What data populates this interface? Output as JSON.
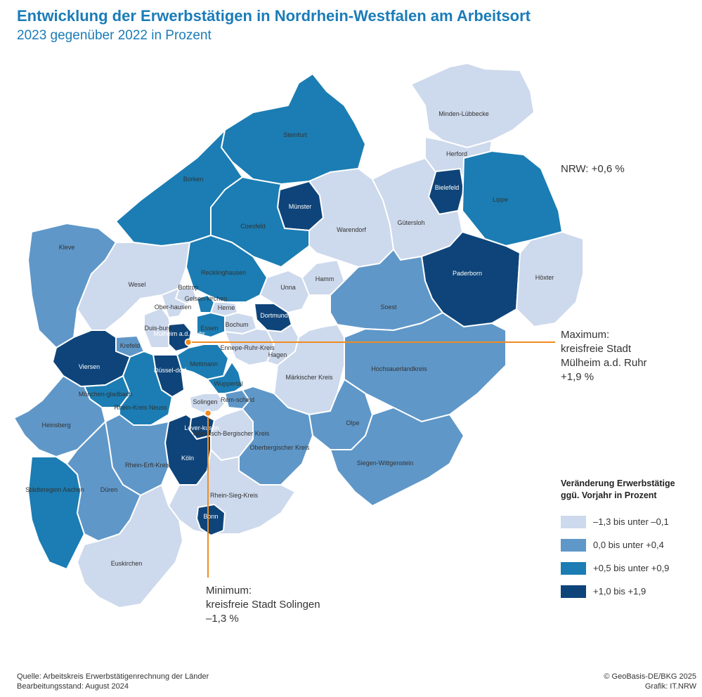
{
  "title": "Entwicklung der Erwerbstätigen in Nordrhein-Westfalen am Arbeitsort",
  "subtitle": "2023 gegenüber 2022 in Prozent",
  "nrw_total": "NRW: +0,6 %",
  "maximum": {
    "line1": "Maximum:",
    "line2": "kreisfreie Stadt",
    "line3": "Mülheim a.d. Ruhr",
    "line4": "+1,9 %"
  },
  "minimum": {
    "line1": "Minimum:",
    "line2": "kreisfreie Stadt Solingen",
    "line3": "–1,3 %"
  },
  "legend": {
    "title_line1": "Veränderung Erwerbstätige",
    "title_line2": "ggü. Vorjahr in Prozent",
    "classes": [
      {
        "label": "–1,3 bis unter –0,1",
        "color": "#cdd9ec"
      },
      {
        "label": "0,0 bis unter +0,4",
        "color": "#5f97c8"
      },
      {
        "label": "+0,5 bis unter +0,9",
        "color": "#1b7db3"
      },
      {
        "label": "+1,0 bis +1,9",
        "color": "#0e4479"
      }
    ]
  },
  "callout_color": "#f08c21",
  "regions": [
    {
      "name": "Minden-Lübbecke",
      "class": 0
    },
    {
      "name": "Herford",
      "class": 0
    },
    {
      "name": "Bielefeld",
      "class": 3
    },
    {
      "name": "Lippe",
      "class": 2
    },
    {
      "name": "Steinfurt",
      "class": 2
    },
    {
      "name": "Borken",
      "class": 2
    },
    {
      "name": "Münster",
      "class": 3
    },
    {
      "name": "Coesfeld",
      "class": 2
    },
    {
      "name": "Warendorf",
      "class": 0
    },
    {
      "name": "Gütersloh",
      "class": 0
    },
    {
      "name": "Paderborn",
      "class": 3
    },
    {
      "name": "Höxter",
      "class": 0
    },
    {
      "name": "Kleve",
      "class": 1
    },
    {
      "name": "Wesel",
      "class": 0
    },
    {
      "name": "Recklinghausen",
      "class": 2
    },
    {
      "name": "Bottrop",
      "class": 0
    },
    {
      "name": "Gelsen-kirchen",
      "class": 2
    },
    {
      "name": "Ober-hausen",
      "class": 0
    },
    {
      "name": "Herne",
      "class": 0
    },
    {
      "name": "Unna",
      "class": 0
    },
    {
      "name": "Hamm",
      "class": 0
    },
    {
      "name": "Soest",
      "class": 1
    },
    {
      "name": "Dortmund",
      "class": 3
    },
    {
      "name": "Bochum",
      "class": 0
    },
    {
      "name": "Essen",
      "class": 2
    },
    {
      "name": "Duis-burg",
      "class": 0
    },
    {
      "name": "Mülheim a.d. Ruhr",
      "class": 3
    },
    {
      "name": "Krefeld",
      "class": 1
    },
    {
      "name": "Viersen",
      "class": 3
    },
    {
      "name": "Ennepe-Ruhr-Kreis",
      "class": 0
    },
    {
      "name": "Hagen",
      "class": 0
    },
    {
      "name": "Märkischer Kreis",
      "class": 0
    },
    {
      "name": "Hochsauerlandkreis",
      "class": 1
    },
    {
      "name": "Mettmann",
      "class": 2
    },
    {
      "name": "Düssel-dorf",
      "class": 3
    },
    {
      "name": "Wuppertal",
      "class": 2
    },
    {
      "name": "Rem-scheid",
      "class": 1
    },
    {
      "name": "Mönchen-gladbach",
      "class": 2
    },
    {
      "name": "Rhein-Kreis Neuss",
      "class": 2
    },
    {
      "name": "Solingen",
      "class": 0
    },
    {
      "name": "Heinsberg",
      "class": 1
    },
    {
      "name": "Lever-kusen",
      "class": 3
    },
    {
      "name": "Rheinisch-Bergischer Kreis",
      "class": 0
    },
    {
      "name": "Oberbergischer Kreis",
      "class": 1
    },
    {
      "name": "Olpe",
      "class": 1
    },
    {
      "name": "Siegen-Wittgenstein",
      "class": 1
    },
    {
      "name": "Köln",
      "class": 3
    },
    {
      "name": "Rhein-Erft-Kreis",
      "class": 1
    },
    {
      "name": "Städteregion Aachen",
      "class": 2
    },
    {
      "name": "Düren",
      "class": 1
    },
    {
      "name": "Rhein-Sieg-Kreis",
      "class": 0
    },
    {
      "name": "Bonn",
      "class": 3
    },
    {
      "name": "Euskirchen",
      "class": 0
    }
  ],
  "source_line1": "Quelle: Arbeitskreis Erwerbstätigenrechnung der Länder",
  "source_line2": "Bearbeitungsstand: August 2024",
  "credit_line1": "© GeoBasis-DE/BKG 2025",
  "credit_line2": "Grafik: IT.NRW"
}
